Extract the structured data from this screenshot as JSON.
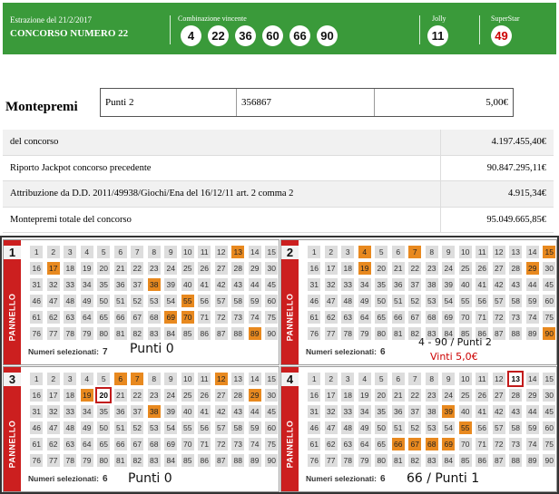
{
  "header": {
    "date_label": "Estrazione del 21/2/2017",
    "title": "CONCORSO NUMERO 22",
    "combo_label": "Combinazione vincente",
    "combo": [
      "4",
      "22",
      "36",
      "60",
      "66",
      "90"
    ],
    "jolly_label": "Jolly",
    "jolly": "11",
    "superstar_label": "SuperStar",
    "superstar": "49",
    "bg_color": "#3a9a3a",
    "superstar_color": "#cc0000"
  },
  "montepremi": {
    "title": "Montepremi",
    "box": {
      "category": "Punti 2",
      "winners": "356867",
      "prize": "5,00€"
    },
    "rows": [
      {
        "label": "del concorso",
        "value": "4.197.455,40€"
      },
      {
        "label": "Riporto Jackpot concorso precedente",
        "value": "90.847.295,11€"
      },
      {
        "label": "Attribuzione da D.D. 2011/49938/Giochi/Ena del 16/12/11 art. 2 comma 2",
        "value": "4.915,34€"
      },
      {
        "label": "Montepremi totale del concorso",
        "value": "95.049.665,85€"
      }
    ]
  },
  "panels": [
    {
      "number": "1",
      "word": "PANNELLO",
      "sel_label": "Numeri selezionati:",
      "count": "7",
      "selected": [
        13,
        17,
        38,
        55,
        69,
        70,
        89
      ],
      "drawn": []
    },
    {
      "number": "2",
      "word": "PANNELLO",
      "sel_label": "Numeri selezionati:",
      "count": "6",
      "selected": [
        4,
        7,
        15,
        19,
        29,
        90
      ],
      "drawn": []
    },
    {
      "number": "3",
      "word": "PANNELLO",
      "sel_label": "Numeri selezionati:",
      "count": "6",
      "selected": [
        6,
        7,
        12,
        19,
        29,
        38
      ],
      "drawn": [
        20
      ]
    },
    {
      "number": "4",
      "word": "PANNELLO",
      "sel_label": "Numeri selezionati:",
      "count": "6",
      "selected": [
        39,
        55,
        66,
        67,
        68,
        69
      ],
      "drawn": [
        13
      ]
    }
  ],
  "annotations": {
    "p1": "Punti 0",
    "p2_line1": "4 - 90 / Punti 2",
    "p2_line2": "Vinti 5,0€",
    "p3": "Punti 0",
    "p4": "66 / Punti 1"
  },
  "colors": {
    "selected": "#e8891f",
    "drawn_border": "#c21b1b",
    "panel_strip": "#cc1f1f",
    "win_text": "#cc0000"
  }
}
